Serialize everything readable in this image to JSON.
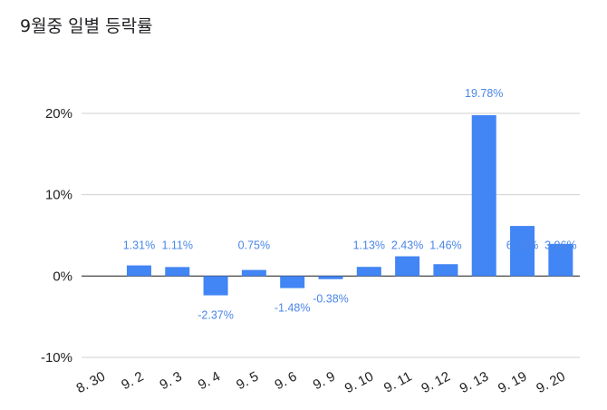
{
  "title": "9월중 일별 등락률",
  "chart_data": {
    "type": "bar",
    "title": "9월중 일별 등락률",
    "xlabel": "",
    "ylabel": "",
    "categories": [
      "8. 30",
      "9. 2",
      "9. 3",
      "9. 4",
      "9. 5",
      "9. 6",
      "9. 9",
      "9. 10",
      "9. 11",
      "9. 12",
      "9. 13",
      "9. 19",
      "9. 20"
    ],
    "values": [
      null,
      1.31,
      1.11,
      -2.37,
      0.75,
      -1.48,
      -0.38,
      1.13,
      2.43,
      1.46,
      19.78,
      6.16,
      3.96
    ],
    "data_labels": [
      "",
      "1.31%",
      "1.11%",
      "-2.37%",
      "0.75%",
      "-1.48%",
      "-0.38%",
      "1.13%",
      "2.43%",
      "1.46%",
      "19.78%",
      "6.16%",
      "3.96%"
    ],
    "ylim": [
      -10,
      20
    ],
    "yticks": [
      -10,
      0,
      10,
      20
    ],
    "ytick_labels": [
      "-10%",
      "0%",
      "10%",
      "20%"
    ],
    "grid": true,
    "legend": "none",
    "bar_color": "#4285f4",
    "label_color": "#4a86e8"
  }
}
